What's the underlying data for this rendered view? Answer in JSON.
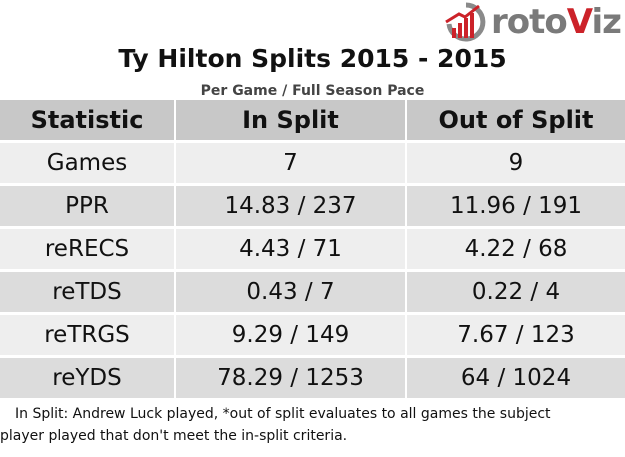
{
  "logo": {
    "text_main": "roto",
    "text_accent": "V",
    "text_end": "iz",
    "brand_red": "#cc2229",
    "brand_gray": "#7a7a7a"
  },
  "header": {
    "title": "Ty Hilton Splits 2015 - 2015",
    "subtitle": "Per Game / Full Season Pace"
  },
  "table": {
    "columns": [
      "Statistic",
      "In Split",
      "Out of Split"
    ],
    "rows": [
      [
        "Games",
        "7",
        "9"
      ],
      [
        "PPR",
        "14.83 / 237",
        "11.96 / 191"
      ],
      [
        "reRECS",
        "4.43 / 71",
        "4.22 / 68"
      ],
      [
        "reTDS",
        "0.43 / 7",
        "0.22 / 4"
      ],
      [
        "reTRGS",
        "9.29 / 149",
        "7.67 / 123"
      ],
      [
        "reYDS",
        "78.29 / 1253",
        "64 / 1024"
      ]
    ]
  },
  "footnote": {
    "line1": "In Split: Andrew Luck played,  *out of split evaluates to all games the subject",
    "line2": "player played that don't meet the in-split criteria."
  }
}
